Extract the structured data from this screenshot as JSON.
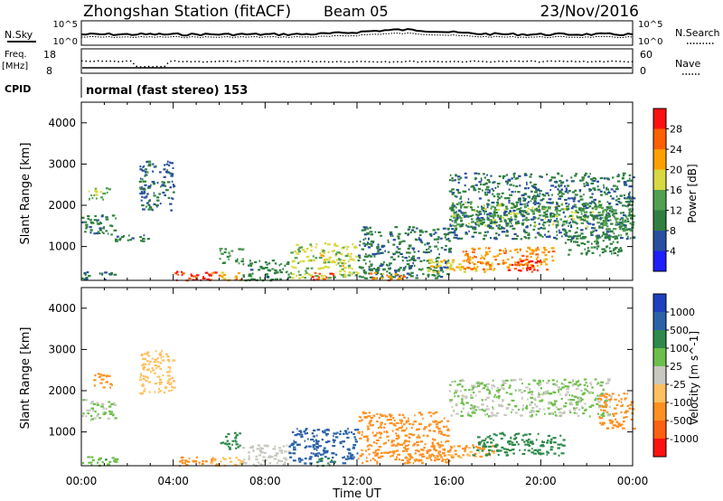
{
  "header": {
    "station": "Zhongshan Station (fitACF)",
    "beam": "Beam 05",
    "date": "23/Nov/2016"
  },
  "summary_panels": {
    "nsky_label": "N.Sky",
    "nsearch_label": "N.Search",
    "noise_ticks": [
      "10^5",
      "10^0"
    ],
    "freq_label_1": "Freq.",
    "freq_label_2": "[MHz]",
    "freq_ticks": [
      "18",
      "8"
    ],
    "nave_label": "Nave",
    "nave_ticks": [
      "60",
      "0"
    ],
    "cpid_label": "CPID",
    "cpid_text": "normal (fast stereo) 153"
  },
  "chart_data": [
    {
      "type": "heatmap",
      "name": "power",
      "ylabel": "Slant Range [km]",
      "xlabel": "Time UT",
      "xlim": [
        "00:00",
        "24:00"
      ],
      "ylim": [
        180,
        4500
      ],
      "x_tick_labels": [
        "00:00",
        "04:00",
        "08:00",
        "12:00",
        "16:00",
        "20:00",
        "00:00"
      ],
      "y_tick_labels": [
        "1000",
        "2000",
        "3000",
        "4000"
      ],
      "colorbar": {
        "label": "Power [dB]",
        "tick_labels": [
          "4",
          "8",
          "12",
          "16",
          "20",
          "24",
          "28"
        ],
        "range": [
          0,
          30
        ],
        "colors": [
          "#1e1eff",
          "#2850a0",
          "#2f8040",
          "#50a050",
          "#d8d840",
          "#ffa000",
          "#ff6000",
          "#ff1010"
        ]
      },
      "regions": [
        {
          "t": [
            0.0,
            1.5
          ],
          "r": [
            1300,
            1800
          ],
          "value": 9
        },
        {
          "t": [
            0.3,
            1.2
          ],
          "r": [
            2100,
            2450
          ],
          "value": 14
        },
        {
          "t": [
            0.0,
            1.5
          ],
          "r": [
            200,
            420
          ],
          "value": 8
        },
        {
          "t": [
            1.2,
            3.0
          ],
          "r": [
            1150,
            1300
          ],
          "value": 9
        },
        {
          "t": [
            2.5,
            4.0
          ],
          "r": [
            1900,
            3100
          ],
          "value": 7
        },
        {
          "t": [
            4.0,
            6.0
          ],
          "r": [
            200,
            420
          ],
          "value": 27
        },
        {
          "t": [
            5.5,
            7.0
          ],
          "r": [
            200,
            400
          ],
          "value": 20
        },
        {
          "t": [
            6.0,
            7.0
          ],
          "r": [
            600,
            1000
          ],
          "value": 12
        },
        {
          "t": [
            7.0,
            9.0
          ],
          "r": [
            200,
            700
          ],
          "value": 10
        },
        {
          "t": [
            9.0,
            12.0
          ],
          "r": [
            250,
            1100
          ],
          "value": 16
        },
        {
          "t": [
            10.0,
            11.0
          ],
          "r": [
            200,
            400
          ],
          "value": 26
        },
        {
          "t": [
            12.0,
            16.0
          ],
          "r": [
            250,
            1500
          ],
          "value": 8
        },
        {
          "t": [
            12.5,
            14.0
          ],
          "r": [
            200,
            400
          ],
          "value": 22
        },
        {
          "t": [
            15.0,
            18.0
          ],
          "r": [
            400,
            700
          ],
          "value": 18
        },
        {
          "t": [
            16.5,
            20.5
          ],
          "r": [
            450,
            1000
          ],
          "value": 22
        },
        {
          "t": [
            18.5,
            20.0
          ],
          "r": [
            400,
            700
          ],
          "value": 28
        },
        {
          "t": [
            16.0,
            23.0
          ],
          "r": [
            1500,
            2100
          ],
          "value": 14
        },
        {
          "t": [
            16.0,
            24.0
          ],
          "r": [
            1200,
            2800
          ],
          "value": 8
        },
        {
          "t": [
            21.0,
            23.5
          ],
          "r": [
            800,
            1300
          ],
          "value": 10
        },
        {
          "t": [
            22.5,
            24.0
          ],
          "r": [
            1400,
            2000
          ],
          "value": 12
        }
      ]
    },
    {
      "type": "heatmap",
      "name": "velocity",
      "ylabel": "Slant Range [km]",
      "xlabel": "Time UT",
      "xlim": [
        "00:00",
        "24:00"
      ],
      "ylim": [
        180,
        4500
      ],
      "x_tick_labels": [
        "00:00",
        "04:00",
        "08:00",
        "12:00",
        "16:00",
        "20:00",
        "00:00"
      ],
      "y_tick_labels": [
        "1000",
        "2000",
        "3000",
        "4000"
      ],
      "colorbar": {
        "label": "Velocity [m s^-1]",
        "tick_labels": [
          "1000",
          "500",
          "100",
          "25",
          "-25",
          "-100",
          "-500",
          "-1000"
        ],
        "bins": [
          1500,
          750,
          300,
          62,
          0,
          -62,
          -300,
          -750,
          -1500
        ],
        "colors": [
          "#1e40c0",
          "#2c62a8",
          "#2e8a4a",
          "#6cbf4a",
          "#c8c8c0",
          "#ffc060",
          "#ff9020",
          "#ff6010",
          "#ff1010"
        ]
      },
      "regions": [
        {
          "t": [
            0.0,
            1.5
          ],
          "r": [
            1300,
            1800
          ],
          "value": 0
        },
        {
          "t": [
            0.5,
            1.3
          ],
          "r": [
            2100,
            2450
          ],
          "value": -400
        },
        {
          "t": [
            0.0,
            1.5
          ],
          "r": [
            200,
            420
          ],
          "value": 40
        },
        {
          "t": [
            2.5,
            4.0
          ],
          "r": [
            1900,
            3000
          ],
          "value": -120
        },
        {
          "t": [
            4.0,
            6.0
          ],
          "r": [
            200,
            420
          ],
          "value": -600
        },
        {
          "t": [
            5.5,
            7.0
          ],
          "r": [
            200,
            400
          ],
          "value": -120
        },
        {
          "t": [
            6.0,
            7.0
          ],
          "r": [
            600,
            1000
          ],
          "value": 150
        },
        {
          "t": [
            7.0,
            9.0
          ],
          "r": [
            200,
            700
          ],
          "value": -40
        },
        {
          "t": [
            9.0,
            12.0
          ],
          "r": [
            250,
            1100
          ],
          "value": 600
        },
        {
          "t": [
            10.0,
            11.0
          ],
          "r": [
            200,
            400
          ],
          "value": 150
        },
        {
          "t": [
            12.0,
            16.0
          ],
          "r": [
            250,
            1500
          ],
          "value": -400
        },
        {
          "t": [
            15.0,
            18.0
          ],
          "r": [
            400,
            700
          ],
          "value": -300
        },
        {
          "t": [
            17.0,
            21.0
          ],
          "r": [
            450,
            1000
          ],
          "value": 200
        },
        {
          "t": [
            16.0,
            23.0
          ],
          "r": [
            1400,
            2300
          ],
          "value": 0
        },
        {
          "t": [
            22.5,
            24.0
          ],
          "r": [
            1100,
            2000
          ],
          "value": -400
        }
      ]
    }
  ]
}
